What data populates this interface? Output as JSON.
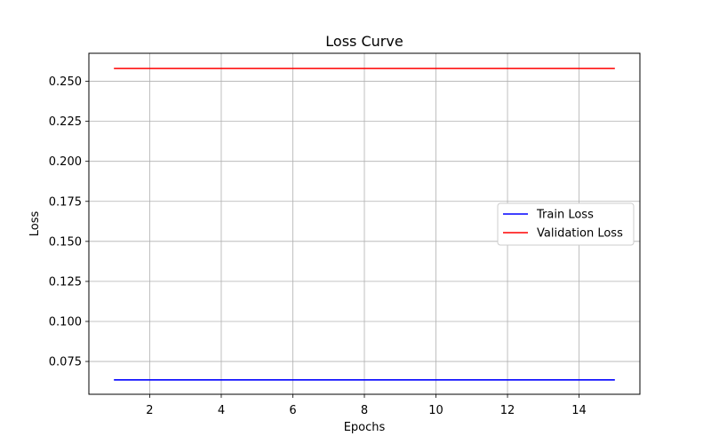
{
  "chart_data": {
    "type": "line",
    "title": "Loss Curve",
    "xlabel": "Epochs",
    "ylabel": "Loss",
    "xlim": [
      0.3,
      15.7
    ],
    "ylim": [
      0.0545,
      0.2675
    ],
    "x_ticks": [
      2,
      4,
      6,
      8,
      10,
      12,
      14
    ],
    "y_ticks": [
      0.075,
      0.1,
      0.125,
      0.15,
      0.175,
      0.2,
      0.225,
      0.25
    ],
    "x_tick_labels": [
      "2",
      "4",
      "6",
      "8",
      "10",
      "12",
      "14"
    ],
    "y_tick_labels": [
      "0.075",
      "0.100",
      "0.125",
      "0.150",
      "0.175",
      "0.200",
      "0.225",
      "0.250"
    ],
    "grid": true,
    "legend_position": "center-right",
    "x": [
      1,
      2,
      3,
      4,
      5,
      6,
      7,
      8,
      9,
      10,
      11,
      12,
      13,
      14,
      15
    ],
    "series": [
      {
        "name": "Train Loss",
        "color": "#0000ff",
        "values": [
          0.0635,
          0.0635,
          0.0635,
          0.0635,
          0.0635,
          0.0635,
          0.0635,
          0.0635,
          0.0635,
          0.0635,
          0.0635,
          0.0635,
          0.0635,
          0.0635,
          0.0635
        ]
      },
      {
        "name": "Validation Loss",
        "color": "#ff0000",
        "values": [
          0.258,
          0.258,
          0.258,
          0.258,
          0.258,
          0.258,
          0.258,
          0.258,
          0.258,
          0.258,
          0.258,
          0.258,
          0.258,
          0.258,
          0.258
        ]
      }
    ]
  }
}
